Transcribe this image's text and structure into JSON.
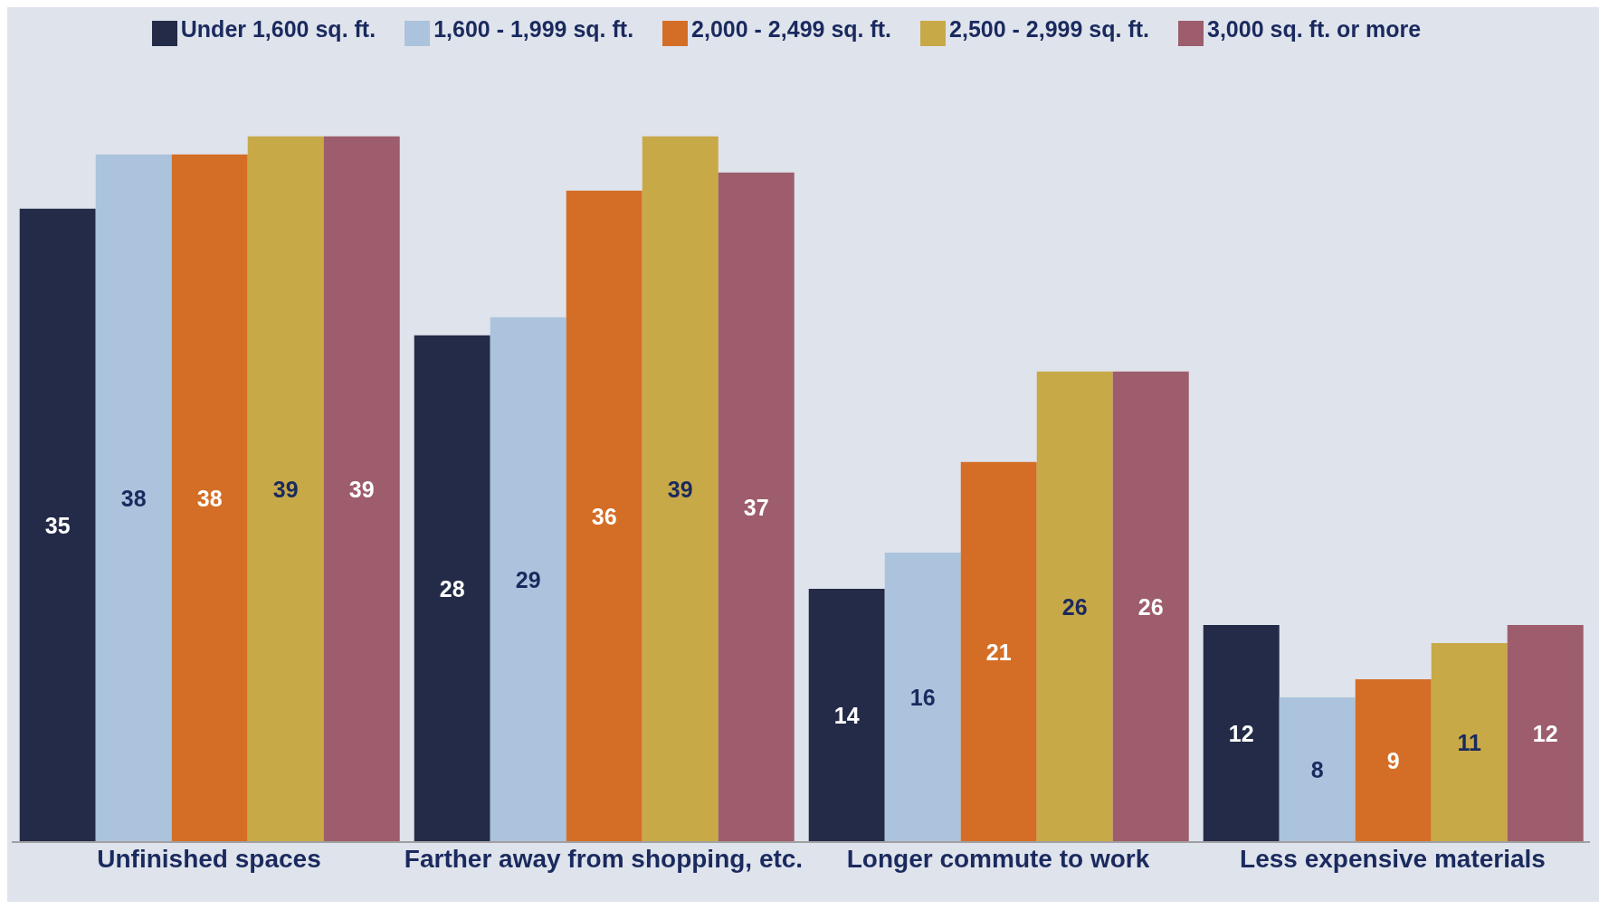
{
  "chart_data": {
    "type": "bar",
    "categories": [
      "Unfinished spaces",
      "Farther away from shopping, etc.",
      "Longer commute to work",
      "Less expensive materials"
    ],
    "series": [
      {
        "name": "Under 1,600 sq. ft.",
        "color": "#232b48",
        "values": [
          35,
          28,
          14,
          12
        ]
      },
      {
        "name": "1,600 - 1,999 sq. ft.",
        "color": "#abc3dc",
        "values": [
          38,
          29,
          16,
          8
        ]
      },
      {
        "name": "2,000 - 2,499 sq. ft.",
        "color": "#d46e26",
        "values": [
          38,
          36,
          21,
          9
        ]
      },
      {
        "name": "2,500 - 2,999 sq. ft.",
        "color": "#c8a948",
        "values": [
          39,
          39,
          26,
          11
        ]
      },
      {
        "name": "3,000 sq. ft. or more",
        "color": "#9d5d6c",
        "values": [
          39,
          37,
          26,
          12
        ]
      }
    ],
    "data_labels": true,
    "legend": "top",
    "grid": false
  }
}
